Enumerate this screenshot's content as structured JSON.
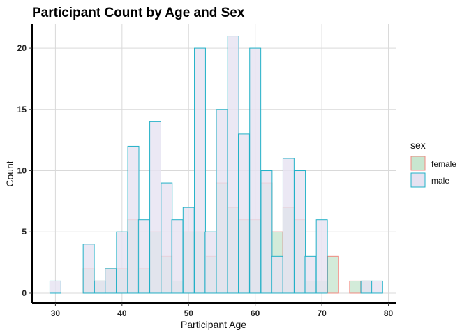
{
  "chart_data": {
    "type": "bar",
    "title": "Participant Count by Age and Sex",
    "xlabel": "Participant Age",
    "ylabel": "Count",
    "xlim": [
      26.5,
      81.2
    ],
    "ylim": [
      -0.8,
      22
    ],
    "x_ticks": [
      30,
      40,
      50,
      60,
      70,
      80
    ],
    "y_ticks": [
      0,
      5,
      10,
      15,
      20
    ],
    "bin_width": 1.6667,
    "grid": true,
    "legend": {
      "title": "sex",
      "position": "right"
    },
    "series": [
      {
        "name": "female",
        "fill": "#c8e6cf",
        "stroke": "#f08a80",
        "bins": [
          {
            "x": 35.0,
            "y": 2
          },
          {
            "x": 36.7,
            "y": 1
          },
          {
            "x": 38.3,
            "y": 2
          },
          {
            "x": 40.0,
            "y": 2
          },
          {
            "x": 41.7,
            "y": 6
          },
          {
            "x": 43.3,
            "y": 2
          },
          {
            "x": 45.0,
            "y": 5
          },
          {
            "x": 46.7,
            "y": 3
          },
          {
            "x": 48.3,
            "y": 1
          },
          {
            "x": 50.0,
            "y": 5
          },
          {
            "x": 51.7,
            "y": 5
          },
          {
            "x": 53.3,
            "y": 3
          },
          {
            "x": 55.0,
            "y": 9
          },
          {
            "x": 56.7,
            "y": 7
          },
          {
            "x": 58.3,
            "y": 6
          },
          {
            "x": 60.0,
            "y": 6
          },
          {
            "x": 61.7,
            "y": 9
          },
          {
            "x": 63.3,
            "y": 5
          },
          {
            "x": 65.0,
            "y": 7
          },
          {
            "x": 66.7,
            "y": 6
          },
          {
            "x": 68.3,
            "y": 1
          },
          {
            "x": 70.0,
            "y": 1
          },
          {
            "x": 71.7,
            "y": 3
          },
          {
            "x": 75.0,
            "y": 1
          },
          {
            "x": 76.7,
            "y": 1
          }
        ]
      },
      {
        "name": "male",
        "fill": "#e6e2f1",
        "stroke": "#22b1c7",
        "bins": [
          {
            "x": 30.0,
            "y": 1
          },
          {
            "x": 35.0,
            "y": 4
          },
          {
            "x": 36.7,
            "y": 1
          },
          {
            "x": 38.3,
            "y": 2
          },
          {
            "x": 40.0,
            "y": 5
          },
          {
            "x": 41.7,
            "y": 12
          },
          {
            "x": 43.3,
            "y": 6
          },
          {
            "x": 45.0,
            "y": 14
          },
          {
            "x": 46.7,
            "y": 9
          },
          {
            "x": 48.3,
            "y": 6
          },
          {
            "x": 50.0,
            "y": 7
          },
          {
            "x": 51.7,
            "y": 20
          },
          {
            "x": 53.3,
            "y": 5
          },
          {
            "x": 55.0,
            "y": 15
          },
          {
            "x": 56.7,
            "y": 21
          },
          {
            "x": 58.3,
            "y": 13
          },
          {
            "x": 60.0,
            "y": 20
          },
          {
            "x": 61.7,
            "y": 10
          },
          {
            "x": 63.3,
            "y": 3
          },
          {
            "x": 65.0,
            "y": 11
          },
          {
            "x": 66.7,
            "y": 10
          },
          {
            "x": 68.3,
            "y": 3
          },
          {
            "x": 70.0,
            "y": 6
          },
          {
            "x": 76.7,
            "y": 1
          },
          {
            "x": 78.3,
            "y": 1
          }
        ]
      }
    ]
  }
}
